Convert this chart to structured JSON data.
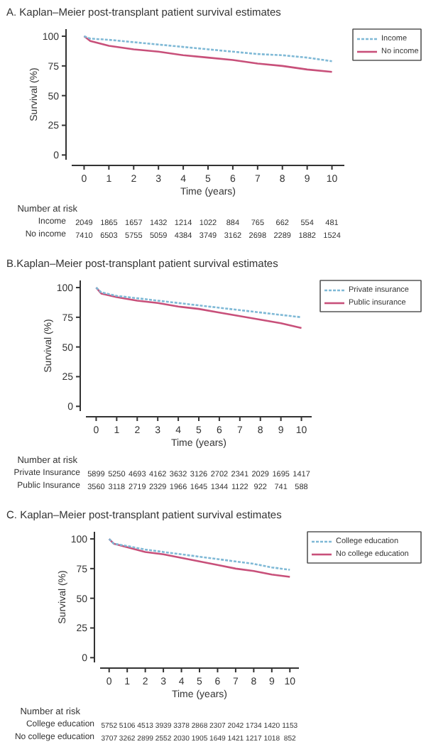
{
  "chart_data": [
    {
      "type": "line",
      "title": "A. Kaplan–Meier post-transplant patient survival estimates",
      "xlabel": "Time (years)",
      "ylabel": "Survival (%)",
      "xlim": [
        -0.5,
        10.5
      ],
      "xticks": [
        0,
        1,
        2,
        3,
        4,
        5,
        6,
        7,
        8,
        9,
        10
      ],
      "ylim": [
        -4,
        106
      ],
      "yticks": [
        0,
        25,
        50,
        75,
        100
      ],
      "legend": "right",
      "x": [
        0,
        0.25,
        1,
        2,
        3,
        4,
        5,
        6,
        7,
        8,
        9,
        10
      ],
      "series": [
        {
          "name": "Income",
          "color": "#7fb9d6",
          "line_style": "dashed",
          "values": [
            100,
            98,
            97,
            95,
            93,
            91,
            89,
            87,
            85,
            84,
            82,
            79
          ]
        },
        {
          "name": "No income",
          "color": "#c8507a",
          "line_style": "solid",
          "values": [
            100,
            96,
            92,
            89,
            87,
            84,
            82,
            80,
            77,
            75,
            72,
            70
          ]
        }
      ],
      "annotations": [
        "Number at risk",
        "Income",
        "2049",
        "1865",
        "1657",
        "1432",
        "1214",
        "1022",
        "884",
        "765",
        "662",
        "554",
        "481",
        "No income",
        "7410",
        "6503",
        "5755",
        "5059",
        "4384",
        "3749",
        "3162",
        "2698",
        "2289",
        "1882",
        "1524"
      ]
    },
    {
      "type": "line",
      "title": "B.Kaplan–Meier post-transplant patient survival estimates",
      "xlabel": "Time (years)",
      "ylabel": "Survival (%)",
      "xlim": [
        -0.5,
        10.5
      ],
      "xticks": [
        0,
        1,
        2,
        3,
        4,
        5,
        6,
        7,
        8,
        9,
        10
      ],
      "ylim": [
        -4,
        106
      ],
      "yticks": [
        0,
        25,
        50,
        75,
        100
      ],
      "legend": "right",
      "x": [
        0,
        0.25,
        1,
        2,
        3,
        4,
        5,
        6,
        7,
        8,
        9,
        10
      ],
      "series": [
        {
          "name": "Private insurance",
          "color": "#7fb9d6",
          "line_style": "dashed",
          "values": [
            100,
            96,
            93,
            91,
            89,
            87,
            85,
            83,
            81,
            79,
            77,
            75
          ]
        },
        {
          "name": "Public insurance",
          "color": "#c8507a",
          "line_style": "solid",
          "values": [
            100,
            95,
            92,
            89,
            87,
            84,
            82,
            79,
            76,
            73,
            70,
            66
          ]
        }
      ],
      "annotations": [
        "Number at risk",
        "Private Insurance",
        "5899",
        "5250",
        "4693",
        "4162",
        "3632",
        "3126",
        "2702",
        "2341",
        "2029",
        "1695",
        "1417",
        "Public Insurance",
        "3560",
        "3118",
        "2719",
        "2329",
        "1966",
        "1645",
        "1344",
        "1122",
        "922",
        "741",
        "588"
      ]
    },
    {
      "type": "line",
      "title": "C. Kaplan–Meier post-transplant patient survival estimates",
      "xlabel": "Time (years)",
      "ylabel": "Survival (%)",
      "xlim": [
        -0.5,
        10.5
      ],
      "xticks": [
        0,
        1,
        2,
        3,
        4,
        5,
        6,
        7,
        8,
        9,
        10
      ],
      "ylim": [
        -4,
        106
      ],
      "yticks": [
        0,
        25,
        50,
        75,
        100
      ],
      "legend": "right",
      "x": [
        0,
        0.25,
        1,
        2,
        3,
        4,
        5,
        6,
        7,
        8,
        9,
        10
      ],
      "series": [
        {
          "name": "College education",
          "color": "#7fb9d6",
          "line_style": "dashed",
          "values": [
            100,
            96,
            94,
            91,
            89,
            87,
            85,
            83,
            81,
            79,
            76,
            74
          ]
        },
        {
          "name": "No college education",
          "color": "#c8507a",
          "line_style": "solid",
          "values": [
            100,
            96,
            93,
            89,
            87,
            84,
            81,
            78,
            75,
            73,
            70,
            68
          ]
        }
      ],
      "annotations": [
        "Number at risk",
        "College education",
        "5752",
        "5106",
        "4513",
        "3939",
        "3378",
        "2868",
        "2307",
        "2042",
        "1734",
        "1420",
        "1153",
        "No college education",
        "3707",
        "3262",
        "2899",
        "2552",
        "2030",
        "1905",
        "1649",
        "1421",
        "1217",
        "1018",
        "852"
      ]
    }
  ]
}
